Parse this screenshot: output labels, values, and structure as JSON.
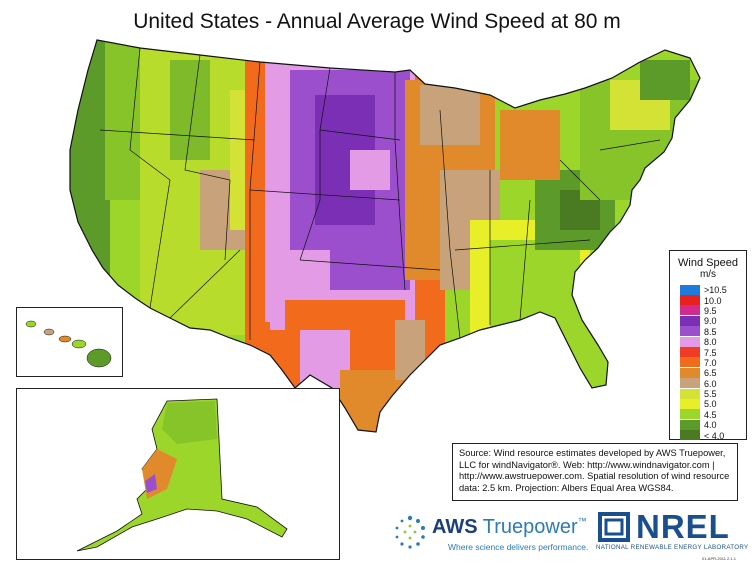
{
  "title": "United States - Annual Average Wind Speed at 80 m",
  "legend": {
    "title": "Wind Speed",
    "units": "m/s",
    "items": [
      {
        "label": ">10.5",
        "color": "#1e7bdc"
      },
      {
        "label": "10.0",
        "color": "#e8201e"
      },
      {
        "label": "9.5",
        "color": "#d42a8e"
      },
      {
        "label": "9.0",
        "color": "#7a2fb5"
      },
      {
        "label": "8.5",
        "color": "#9b4fcc"
      },
      {
        "label": "8.0",
        "color": "#e39be6"
      },
      {
        "label": "7.5",
        "color": "#f03c24"
      },
      {
        "label": "7.0",
        "color": "#f26b1d"
      },
      {
        "label": "6.5",
        "color": "#e08a2c"
      },
      {
        "label": "6.0",
        "color": "#c7a27a"
      },
      {
        "label": "5.5",
        "color": "#d4e236"
      },
      {
        "label": "5.0",
        "color": "#e8ef28"
      },
      {
        "label": "4.5",
        "color": "#9cd62a"
      },
      {
        "label": "4.0",
        "color": "#5c9a2a"
      },
      {
        "label": "< 4.0",
        "color": "#4a7a22"
      }
    ]
  },
  "source_lines": [
    "Source: Wind resource estimates developed by AWS Truepower,",
    "LLC for windNavigator®. Web: http://www.windnavigator.com |",
    "http://www.awstruepower.com. Spatial resolution of wind resource",
    "data: 2.5 km. Projection: Albers Equal Area WGS84."
  ],
  "logos": {
    "aws_brand": "AWS",
    "aws_name": "Truepower",
    "aws_tm": "™",
    "aws_tagline": "Where science delivers performance.",
    "nrel_name": "NREL",
    "nrel_sub": "NATIONAL RENEWABLE ENERGY LABORATORY"
  },
  "date_stamp": "01-APR-2011 2.1.1"
}
